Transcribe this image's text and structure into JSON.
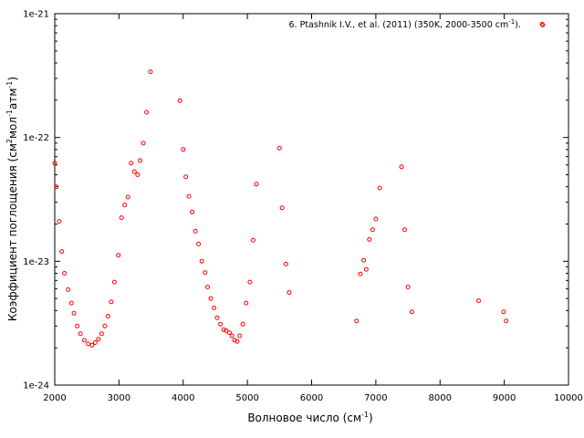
{
  "chart_data": {
    "type": "scatter",
    "xlabel": "Волновое число (см",
    "xlabel_sup": "-1",
    "xlabel_end": ")",
    "ylabel": {
      "t1": "Коэффициент поглощения (см",
      "s1": "2",
      "t2": "мол",
      "s2": "-1",
      "t3": "атм",
      "s3": "-1",
      "t4": ")"
    },
    "xlim": [
      2000,
      10000
    ],
    "ylim": [
      1e-24,
      1e-21
    ],
    "yscale": "log",
    "x_ticks": [
      "2000",
      "3000",
      "4000",
      "5000",
      "6000",
      "7000",
      "8000",
      "9000",
      "10000"
    ],
    "y_ticks": [
      "1e-24",
      "1e-23",
      "1e-22",
      "1e-21"
    ],
    "grid": false,
    "legend_position": "top-right",
    "legend": {
      "text": "6. Ptashnik I.V., et al. (2011) (350K, 2000-3500 cm",
      "sup": "-1",
      "text_end": ")."
    },
    "series": [
      {
        "name": "6. Ptashnik I.V., et al. (2011) (350K, 2000-3500 cm-1).",
        "color": "#ff0000",
        "marker": "open-circle",
        "points": [
          [
            2000,
            6.2e-23
          ],
          [
            2025,
            4e-23
          ],
          [
            2070,
            2.1e-23
          ],
          [
            2110,
            1.2e-23
          ],
          [
            2150,
            8e-24
          ],
          [
            2210,
            5.9e-24
          ],
          [
            2260,
            4.6e-24
          ],
          [
            2300,
            3.8e-24
          ],
          [
            2350,
            3e-24
          ],
          [
            2400,
            2.6e-24
          ],
          [
            2460,
            2.3e-24
          ],
          [
            2520,
            2.15e-24
          ],
          [
            2580,
            2.1e-24
          ],
          [
            2630,
            2.2e-24
          ],
          [
            2680,
            2.35e-24
          ],
          [
            2730,
            2.6e-24
          ],
          [
            2780,
            3e-24
          ],
          [
            2830,
            3.6e-24
          ],
          [
            2880,
            4.7e-24
          ],
          [
            2930,
            6.8e-24
          ],
          [
            2990,
            1.12e-23
          ],
          [
            3040,
            2.25e-23
          ],
          [
            3090,
            2.85e-23
          ],
          [
            3140,
            3.3e-23
          ],
          [
            3190,
            6.2e-23
          ],
          [
            3240,
            5.3e-23
          ],
          [
            3290,
            5e-23
          ],
          [
            3330,
            6.5e-23
          ],
          [
            3380,
            9e-23
          ],
          [
            3430,
            1.6e-22
          ],
          [
            3490,
            3.4e-22
          ],
          [
            3950,
            1.98e-22
          ],
          [
            4000,
            8e-23
          ],
          [
            4040,
            4.8e-23
          ],
          [
            4090,
            3.35e-23
          ],
          [
            4140,
            2.5e-23
          ],
          [
            4190,
            1.75e-23
          ],
          [
            4240,
            1.38e-23
          ],
          [
            4290,
            1e-23
          ],
          [
            4340,
            8.1e-24
          ],
          [
            4380,
            6.2e-24
          ],
          [
            4430,
            5e-24
          ],
          [
            4480,
            4.2e-24
          ],
          [
            4530,
            3.5e-24
          ],
          [
            4580,
            3.1e-24
          ],
          [
            4630,
            2.8e-24
          ],
          [
            4670,
            2.75e-24
          ],
          [
            4720,
            2.65e-24
          ],
          [
            4760,
            2.5e-24
          ],
          [
            4800,
            2.3e-24
          ],
          [
            4840,
            2.25e-24
          ],
          [
            4880,
            2.5e-24
          ],
          [
            4930,
            3.1e-24
          ],
          [
            4980,
            4.6e-24
          ],
          [
            5040,
            6.8e-24
          ],
          [
            5090,
            1.48e-23
          ],
          [
            5140,
            4.2e-23
          ],
          [
            5500,
            8.2e-23
          ],
          [
            5540,
            2.7e-23
          ],
          [
            5600,
            9.5e-24
          ],
          [
            5650,
            5.6e-24
          ],
          [
            6700,
            3.3e-24
          ],
          [
            6760,
            7.9e-24
          ],
          [
            6810,
            1.02e-23
          ],
          [
            6850,
            8.6e-24
          ],
          [
            6900,
            1.5e-23
          ],
          [
            6950,
            1.8e-23
          ],
          [
            7000,
            2.2e-23
          ],
          [
            7060,
            3.9e-23
          ],
          [
            7400,
            5.8e-23
          ],
          [
            7450,
            1.8e-23
          ],
          [
            7500,
            6.2e-24
          ],
          [
            7560,
            3.9e-24
          ],
          [
            8600,
            4.8e-24
          ],
          [
            8990,
            3.9e-24
          ],
          [
            9030,
            3.3e-24
          ],
          [
            9600,
            8.1e-22
          ]
        ]
      }
    ]
  }
}
